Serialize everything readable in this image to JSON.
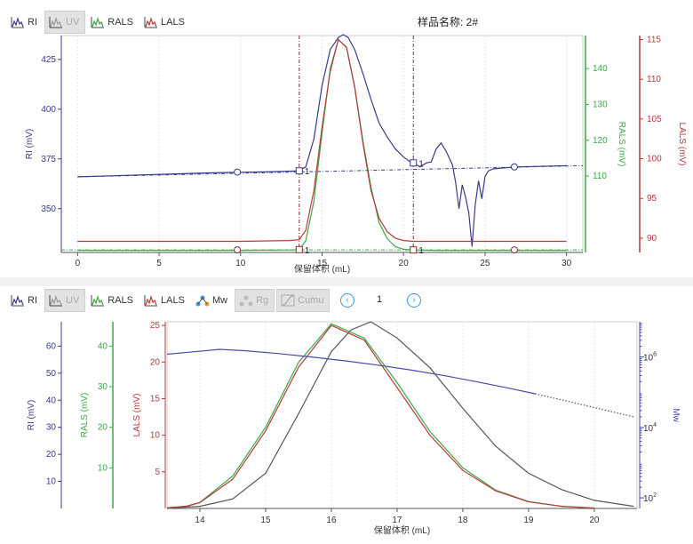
{
  "toolbar_top": [
    {
      "label": "RI",
      "icon": "ri-trace-icon",
      "color": "#3a3a8c",
      "enabled": true
    },
    {
      "label": "UV",
      "icon": "uv-trace-icon",
      "color": "#999999",
      "enabled": false
    },
    {
      "label": "RALS",
      "icon": "rals-trace-icon",
      "color": "#3aa845",
      "enabled": true
    },
    {
      "label": "LALS",
      "icon": "lals-trace-icon",
      "color": "#b83a3a",
      "enabled": true
    }
  ],
  "sample_name": "样品名称: 2#",
  "toolbar_bottom": [
    {
      "label": "RI",
      "icon": "ri-trace-icon",
      "color": "#3a3a8c",
      "enabled": true
    },
    {
      "label": "UV",
      "icon": "uv-trace-icon",
      "color": "#999999",
      "enabled": false
    },
    {
      "label": "RALS",
      "icon": "rals-trace-icon",
      "color": "#3aa845",
      "enabled": true
    },
    {
      "label": "LALS",
      "icon": "lals-trace-icon",
      "color": "#b83a3a",
      "enabled": true
    },
    {
      "label": "Mw",
      "icon": "mw-molecule-icon",
      "color": "#3b9ad6",
      "enabled": true
    },
    {
      "label": "Rg",
      "icon": "rg-molecule-icon",
      "color": "#999999",
      "enabled": false
    },
    {
      "label": "Cumu",
      "icon": "cumu-curve-icon",
      "color": "#999999",
      "enabled": false
    }
  ],
  "pager": {
    "prev_icon": "chevron-left-icon",
    "next_icon": "chevron-right-icon",
    "page": "1"
  },
  "colors": {
    "ri": "#3a3a8c",
    "rals": "#3aa845",
    "lals": "#b83a3a",
    "mw": "#4a4aa8",
    "grid": "#e6e6e6",
    "marker": "#8b2a2a"
  },
  "chart_data": [
    {
      "type": "line",
      "xlabel": "保留体积 (mL)",
      "xlim": [
        -1,
        31
      ],
      "xticks": [
        0,
        5,
        10,
        15,
        20,
        25,
        30
      ],
      "axes": {
        "ri": {
          "label": "RI (mV)",
          "ylim": [
            328,
            437
          ],
          "ticks": [
            350,
            375,
            400,
            425
          ]
        },
        "rals": {
          "label": "RALS (mV)",
          "ylim": [
            88.7,
            149.2
          ],
          "ticks": [
            110,
            120,
            130,
            140
          ]
        },
        "lals": {
          "label": "LALS (mV)",
          "ylim": [
            88.2,
            115.5
          ],
          "ticks": [
            90,
            95,
            100,
            105,
            110,
            115
          ]
        }
      },
      "integration_lines": [
        13.6,
        20.6
      ],
      "series": [
        {
          "name": "RI",
          "axis": "ri",
          "x": [
            0,
            2,
            4,
            6,
            8,
            10,
            12,
            13.6,
            14,
            14.5,
            15,
            15.5,
            16,
            16.3,
            16.6,
            17,
            17.5,
            18,
            18.5,
            19,
            19.5,
            20,
            20.5,
            20.6,
            21,
            21.4,
            21.7,
            22,
            22.3,
            22.6,
            23,
            23.2,
            23.4,
            23.6,
            23.8,
            24,
            24.2,
            24.4,
            24.6,
            24.8,
            25,
            25.2,
            25.5,
            26,
            27,
            28,
            29,
            30
          ],
          "y": [
            366,
            366.5,
            367,
            367.5,
            368,
            368.3,
            368.6,
            369,
            371,
            385,
            412,
            430,
            436,
            437.5,
            436,
            430,
            418,
            405,
            393,
            386,
            380,
            376,
            373,
            373,
            371,
            373,
            373.5,
            380,
            383,
            379,
            372,
            363,
            350,
            362,
            356,
            348,
            331,
            352,
            364,
            355,
            366,
            369,
            370,
            370.4,
            371,
            371.2,
            371.4,
            371.6
          ]
        },
        {
          "name": "RALS",
          "axis": "rals",
          "x": [
            0,
            5,
            10,
            13,
            13.6,
            14,
            14.5,
            15,
            15.5,
            16,
            16.5,
            17,
            17.5,
            18,
            18.5,
            19,
            19.5,
            20,
            20.6,
            22,
            25,
            30
          ],
          "y": [
            89.3,
            89.3,
            89.3,
            89.4,
            89.5,
            92,
            103,
            122,
            140,
            148,
            146,
            135,
            120,
            107,
            97,
            92.5,
            90.3,
            89.6,
            89.4,
            89.3,
            89.3,
            89.3
          ]
        },
        {
          "name": "LALS",
          "axis": "lals",
          "x": [
            0,
            5,
            10,
            13,
            13.6,
            14,
            14.5,
            15,
            15.5,
            16,
            16.5,
            17,
            17.5,
            18,
            18.5,
            19,
            19.5,
            20,
            20.6,
            22,
            25,
            30
          ],
          "y": [
            89.6,
            89.6,
            89.6,
            89.7,
            89.8,
            91,
            96,
            104,
            111,
            115,
            114,
            109,
            102,
            96,
            92.5,
            90.8,
            90,
            89.7,
            89.6,
            89.6,
            89.6,
            89.6
          ]
        }
      ],
      "markers": [
        {
          "axis": "ri",
          "x": 9.8,
          "y": 368.4,
          "shape": "circle"
        },
        {
          "axis": "ri",
          "x": 13.6,
          "y": 369,
          "shape": "square",
          "label": "1"
        },
        {
          "axis": "ri",
          "x": 20.6,
          "y": 373,
          "shape": "square",
          "label": "1"
        },
        {
          "axis": "ri",
          "x": 26.8,
          "y": 371,
          "shape": "circle"
        },
        {
          "axis": "rals",
          "x": 9.8,
          "y": 89.4,
          "shape": "circle"
        },
        {
          "axis": "rals",
          "x": 13.6,
          "y": 89.5,
          "shape": "square",
          "label": "1"
        },
        {
          "axis": "rals",
          "x": 20.6,
          "y": 89.4,
          "shape": "square",
          "label": "1"
        },
        {
          "axis": "rals",
          "x": 26.8,
          "y": 89.4,
          "shape": "circle"
        }
      ]
    },
    {
      "type": "line",
      "xlabel": "保留体积 (mL)",
      "xlim": [
        13.5,
        20.65
      ],
      "xticks": [
        14,
        15,
        16,
        17,
        18,
        19,
        20
      ],
      "axes": {
        "ri": {
          "label": "RI (mV)",
          "ylim": [
            0,
            69
          ],
          "ticks": [
            10,
            20,
            30,
            40,
            50,
            60
          ]
        },
        "rals": {
          "label": "RALS (mV)",
          "ylim": [
            0,
            46
          ],
          "ticks": [
            10,
            20,
            30,
            40
          ]
        },
        "lals": {
          "label": "LALS (mV)",
          "ylim": [
            0,
            25.5
          ],
          "ticks": [
            5,
            10,
            15,
            20,
            25
          ]
        },
        "mw": {
          "label": "Mw",
          "scale": "log",
          "ylim": [
            50,
            10000000
          ],
          "ticks": [
            100,
            10000,
            1000000
          ],
          "tick_labels": [
            [
              "10",
              "2"
            ],
            [
              "10",
              "4"
            ],
            [
              "10",
              "6"
            ]
          ]
        }
      },
      "series": [
        {
          "name": "RI",
          "axis": "ri",
          "x": [
            13.5,
            14,
            14.5,
            15,
            15.5,
            16,
            16.3,
            16.6,
            17,
            17.5,
            18,
            18.5,
            19,
            19.5,
            20,
            20.6
          ],
          "y": [
            0.1,
            0.8,
            3.5,
            13,
            35,
            58,
            66,
            69,
            63,
            52,
            37,
            23,
            13,
            7,
            3,
            0.8
          ]
        },
        {
          "name": "RALS",
          "axis": "rals",
          "x": [
            13.5,
            13.8,
            14,
            14.5,
            15,
            15.5,
            16,
            16.5,
            17,
            17.5,
            18,
            18.5,
            19,
            19.5,
            20
          ],
          "y": [
            0.1,
            0.6,
            1.5,
            8,
            20,
            36,
            45.5,
            42,
            31,
            19,
            10,
            4.5,
            1.7,
            0.5,
            0.1
          ]
        },
        {
          "name": "LALS",
          "axis": "lals",
          "x": [
            13.5,
            13.8,
            14,
            14.5,
            15,
            15.5,
            16,
            16.5,
            17,
            17.5,
            18,
            18.5,
            19,
            19.5,
            20
          ],
          "y": [
            0.1,
            0.3,
            0.8,
            4,
            10.6,
            19.3,
            25,
            23,
            16.5,
            10,
            5.2,
            2.4,
            0.9,
            0.3,
            0.05
          ]
        },
        {
          "name": "Mw",
          "axis": "mw",
          "x": [
            13.5,
            13.9,
            14.3,
            14.7,
            15.2,
            15.7,
            16.2,
            16.7,
            17.2,
            17.7,
            18.2,
            18.7,
            19.1
          ],
          "y": [
            1200000,
            1400000,
            1650000,
            1500000,
            1250000,
            1000000,
            780000,
            590000,
            430000,
            300000,
            200000,
            130000,
            90000
          ]
        },
        {
          "name": "Mw-extrapolated",
          "axis": "mw",
          "dotted": true,
          "x": [
            19.1,
            19.6,
            20.1,
            20.6
          ],
          "y": [
            90000,
            55000,
            33000,
            20000
          ]
        }
      ]
    }
  ]
}
